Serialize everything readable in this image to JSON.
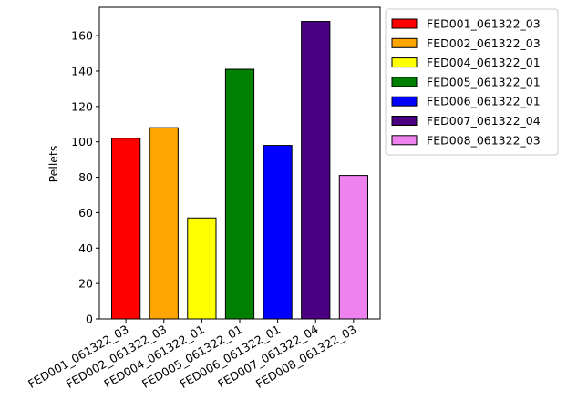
{
  "chart_data": {
    "type": "bar",
    "title": "",
    "xlabel": "",
    "ylabel": "Pellets",
    "ylim": [
      0,
      176
    ],
    "yticks": [
      0,
      20,
      40,
      60,
      80,
      100,
      120,
      140,
      160
    ],
    "grid": false,
    "legend_position": "outside-top-right",
    "categories": [
      "FED001_061322_03",
      "FED002_061322_03",
      "FED004_061322_01",
      "FED005_061322_01",
      "FED006_061322_01",
      "FED007_061322_04",
      "FED008_061322_03"
    ],
    "values": [
      102,
      108,
      57,
      141,
      98,
      168,
      81
    ],
    "colors": [
      "#ff0000",
      "#ffa500",
      "#ffff00",
      "#008000",
      "#0000ff",
      "#4b0082",
      "#ee82ee"
    ],
    "legend": [
      "FED001_061322_03",
      "FED002_061322_03",
      "FED004_061322_01",
      "FED005_061322_01",
      "FED006_061322_01",
      "FED007_061322_04",
      "FED008_061322_03"
    ]
  }
}
